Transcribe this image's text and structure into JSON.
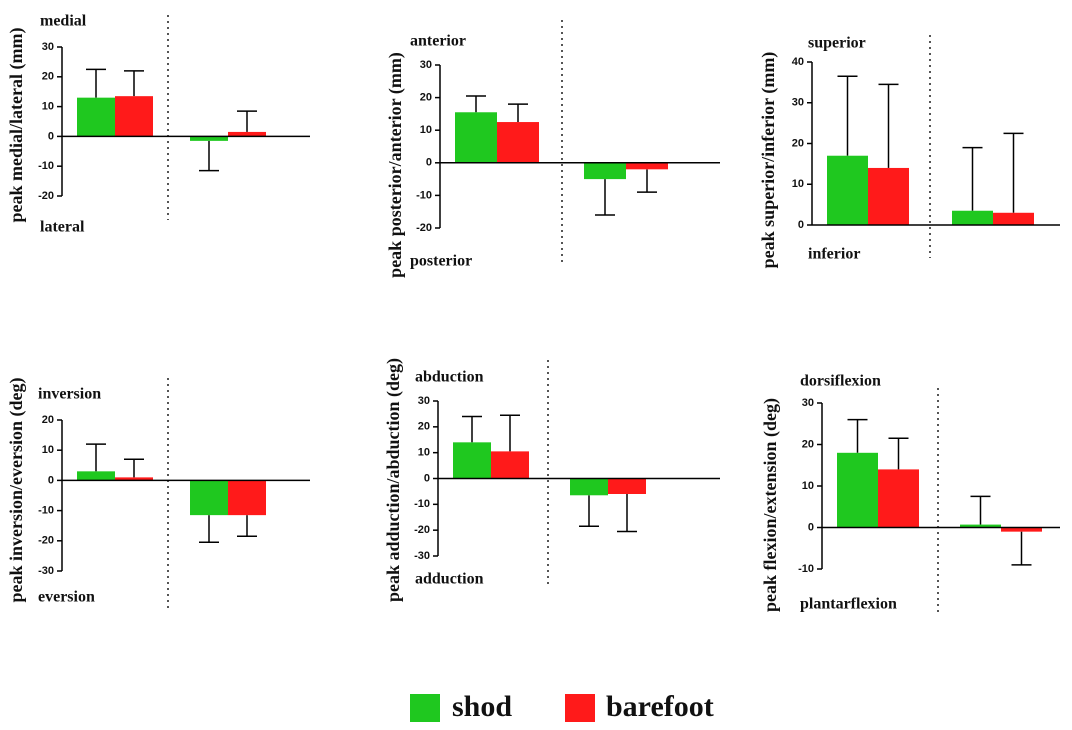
{
  "legend": [
    {
      "name": "shod",
      "color": "#1fc81f"
    },
    {
      "name": "barefoot",
      "color": "#ff1a1a"
    }
  ],
  "chart_data": [
    {
      "type": "bar",
      "ylabel": "peak medial/lateral (mm)",
      "annotations": [
        "medial",
        "lateral"
      ],
      "categories": [
        null,
        null
      ],
      "ylim": [
        -20,
        30
      ],
      "yticks": [
        -20,
        -10,
        0,
        10,
        20,
        30
      ],
      "series": [
        {
          "color": "#1fc81f",
          "values": [
            13,
            -1.5
          ],
          "errors": [
            9.5,
            10
          ]
        },
        {
          "color": "#ff1a1a",
          "values": [
            13.5,
            1.5
          ],
          "errors": [
            8.5,
            7
          ]
        }
      ]
    },
    {
      "type": "bar",
      "ylabel": "peak posterior/anterior (mm)",
      "annotations": [
        "anterior",
        "posterior"
      ],
      "categories": [
        null,
        null
      ],
      "ylim": [
        -20,
        30
      ],
      "yticks": [
        -20,
        -10,
        0,
        10,
        20,
        30
      ],
      "series": [
        {
          "color": "#1fc81f",
          "values": [
            15.5,
            -5
          ],
          "errors": [
            5,
            11
          ]
        },
        {
          "color": "#ff1a1a",
          "values": [
            12.5,
            -2
          ],
          "errors": [
            5.5,
            7
          ]
        }
      ]
    },
    {
      "type": "bar",
      "ylabel": "peak superior/inferior (mm)",
      "annotations": [
        "superior",
        "inferior"
      ],
      "categories": [
        null,
        null
      ],
      "ylim": [
        0,
        40
      ],
      "yticks": [
        0,
        10,
        20,
        30,
        40
      ],
      "series": [
        {
          "color": "#1fc81f",
          "values": [
            17,
            3.5
          ],
          "errors": [
            19.5,
            15.5
          ]
        },
        {
          "color": "#ff1a1a",
          "values": [
            14,
            3
          ],
          "errors": [
            20.5,
            19.5
          ]
        }
      ]
    },
    {
      "type": "bar",
      "ylabel": "peak inversion/eversion (deg)",
      "annotations": [
        "inversion",
        "eversion"
      ],
      "categories": [
        null,
        null
      ],
      "ylim": [
        -30,
        20
      ],
      "yticks": [
        -30,
        -20,
        -10,
        0,
        10,
        20
      ],
      "series": [
        {
          "color": "#1fc81f",
          "values": [
            3,
            -11.5
          ],
          "errors": [
            9,
            9
          ]
        },
        {
          "color": "#ff1a1a",
          "values": [
            1,
            -11.5
          ],
          "errors": [
            6,
            7
          ]
        }
      ]
    },
    {
      "type": "bar",
      "ylabel": "peak adduction/abduction (deg)",
      "annotations": [
        "abduction",
        "adduction"
      ],
      "categories": [
        null,
        null
      ],
      "ylim": [
        -30,
        30
      ],
      "yticks": [
        -30,
        -20,
        -10,
        0,
        10,
        20,
        30
      ],
      "series": [
        {
          "color": "#1fc81f",
          "values": [
            14,
            -6.5
          ],
          "errors": [
            10,
            12
          ]
        },
        {
          "color": "#ff1a1a",
          "values": [
            10.5,
            -6
          ],
          "errors": [
            14,
            14.5
          ]
        }
      ]
    },
    {
      "type": "bar",
      "ylabel": "peak flexion/extension (deg)",
      "annotations": [
        "dorsiflexion",
        "plantarflexion"
      ],
      "categories": [
        null,
        null
      ],
      "ylim": [
        -10,
        30
      ],
      "yticks": [
        -10,
        0,
        10,
        20,
        30
      ],
      "series": [
        {
          "color": "#1fc81f",
          "values": [
            18,
            0.7
          ],
          "errors": [
            8,
            6.8
          ]
        },
        {
          "color": "#ff1a1a",
          "values": [
            14,
            -1
          ],
          "errors": [
            7.5,
            8
          ]
        }
      ]
    }
  ]
}
